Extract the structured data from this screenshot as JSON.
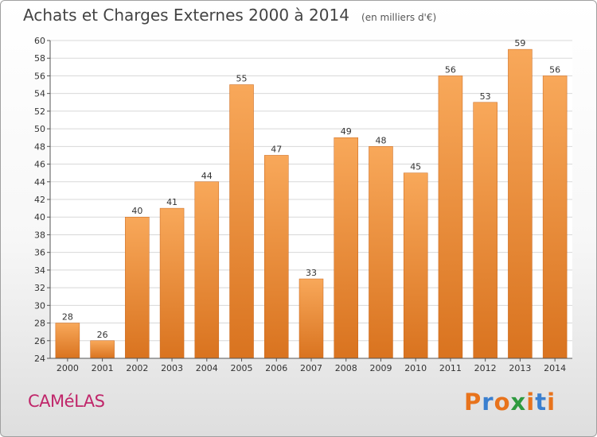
{
  "header": {
    "title": "Achats et Charges Externes 2000 à 2014",
    "subtitle": "(en milliers d'€)"
  },
  "footer": {
    "commune": "CAMéLAS",
    "logo_text": "Proxiti",
    "logo_colors": [
      "#e8731c",
      "#3a7fcf",
      "#e8731c",
      "#2e9a3f",
      "#e8731c",
      "#3a7fcf",
      "#e8731c"
    ]
  },
  "colors": {
    "bar_light": "#f8a85a",
    "bar_dark": "#d9731f",
    "bar_edge": "#c8651a",
    "grid": "#d8d8d8",
    "axis": "#555555",
    "text": "#333333"
  },
  "chart_data": {
    "type": "bar",
    "categories": [
      "2000",
      "2001",
      "2002",
      "2003",
      "2004",
      "2005",
      "2006",
      "2007",
      "2008",
      "2009",
      "2010",
      "2011",
      "2012",
      "2013",
      "2014"
    ],
    "values": [
      28,
      26,
      40,
      41,
      44,
      55,
      47,
      33,
      49,
      48,
      45,
      56,
      53,
      59,
      56
    ],
    "ylim": [
      24,
      60
    ],
    "yticks": [
      24,
      26,
      28,
      30,
      32,
      34,
      36,
      38,
      40,
      42,
      44,
      46,
      48,
      50,
      52,
      54,
      56,
      58,
      60
    ],
    "grid": true,
    "data_labels": true
  }
}
